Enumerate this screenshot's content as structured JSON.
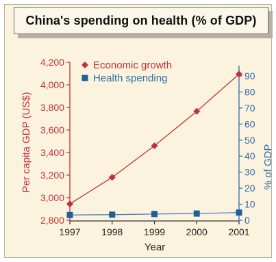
{
  "chart_data": {
    "type": "line",
    "title": "China's spending on health (% of GDP)",
    "x": [
      1997,
      1998,
      1999,
      2000,
      2001
    ],
    "xlabel": "Year",
    "x_tick_labels": [
      "1997",
      "1998",
      "1999",
      "2000",
      "2001"
    ],
    "y_left": {
      "label": "Per capita GDP (US$)",
      "lim": [
        2800,
        4200
      ],
      "tick_values": [
        2800,
        3000,
        3200,
        3400,
        3600,
        3800,
        4000,
        4200
      ],
      "tick_labels": [
        "2,800",
        "3,000",
        "3,200",
        "3,400",
        "3,600",
        "3,800",
        "4,000",
        "4,200"
      ]
    },
    "y_right": {
      "label": "% of GDP",
      "lim": [
        0,
        95
      ],
      "tick_values": [
        0,
        10,
        20,
        30,
        40,
        50,
        60,
        70,
        80,
        90
      ],
      "tick_labels": [
        "0",
        "10",
        "20",
        "30",
        "40",
        "50",
        "60",
        "70",
        "80",
        "90"
      ]
    },
    "series": [
      {
        "name": "Economic growth",
        "axis": "left",
        "marker": "diamond",
        "color": "#c0303a",
        "values": [
          2945,
          3180,
          3460,
          3765,
          4095
        ]
      },
      {
        "name": "Health spending",
        "axis": "right",
        "marker": "square",
        "color": "#1f5e9c",
        "values": [
          3.3,
          3.5,
          3.9,
          4.2,
          4.8
        ]
      }
    ],
    "legend_position": "top-left",
    "grid": false
  },
  "colors": {
    "frame_background": "#fbf3dd",
    "left_axis": "#c0303a",
    "right_axis": "#2a6db0"
  }
}
